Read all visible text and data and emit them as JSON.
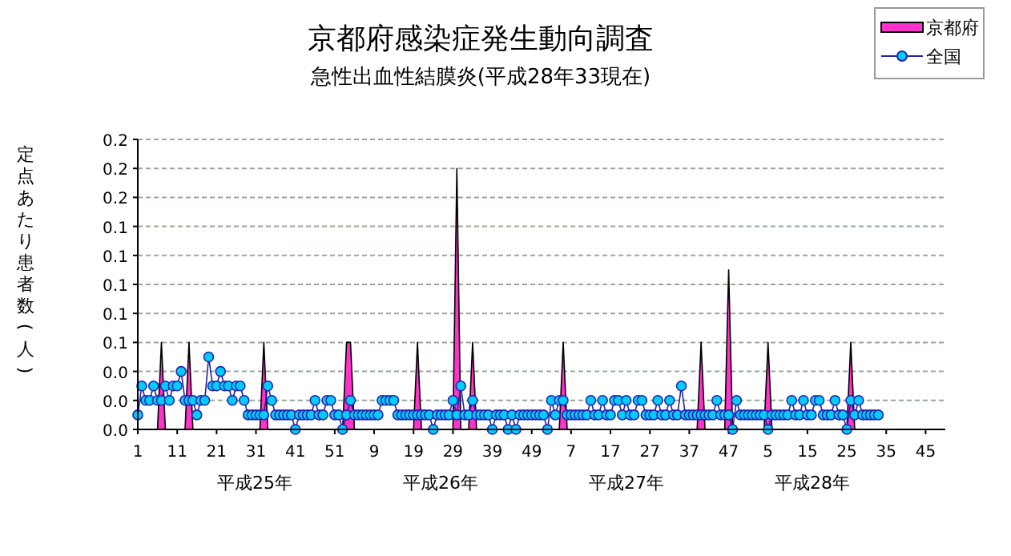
{
  "chart_data": {
    "type": "line",
    "title": "京都府感染症発生動向調査",
    "subtitle": "急性出血性結膜炎(平成28年33現在)",
    "ylabel": "定点あたり患者数(人)",
    "annotations": [
      "平成25年",
      "平成26年",
      "平成27年",
      "平成28年"
    ],
    "categories": [
      "1",
      null,
      null,
      null,
      null,
      null,
      null,
      null,
      null,
      null,
      "11",
      null,
      null,
      null,
      null,
      null,
      null,
      null,
      null,
      null,
      "21",
      null,
      null,
      null,
      null,
      null,
      null,
      null,
      null,
      null,
      "31",
      null,
      null,
      null,
      null,
      null,
      null,
      null,
      null,
      null,
      "41",
      null,
      null,
      null,
      null,
      null,
      null,
      null,
      null,
      null,
      "51",
      null,
      null,
      null,
      null,
      null,
      null,
      null,
      null,
      null,
      "9",
      null,
      null,
      null,
      null,
      null,
      null,
      null,
      null,
      null,
      "19",
      null,
      null,
      null,
      null,
      null,
      null,
      null,
      null,
      null,
      "29",
      null,
      null,
      null,
      null,
      null,
      null,
      null,
      null,
      null,
      "39",
      null,
      null,
      null,
      null,
      null,
      null,
      null,
      null,
      null,
      "49",
      null,
      null,
      null,
      null,
      null,
      null,
      null,
      null,
      null,
      "7",
      null,
      null,
      null,
      null,
      null,
      null,
      null,
      null,
      null,
      "17",
      null,
      null,
      null,
      null,
      null,
      null,
      null,
      null,
      null,
      "27",
      null,
      null,
      null,
      null,
      null,
      null,
      null,
      null,
      null,
      "37",
      null,
      null,
      null,
      null,
      null,
      null,
      null,
      null,
      null,
      "47",
      null,
      null,
      null,
      null,
      null,
      null,
      null,
      null,
      null,
      "5",
      null,
      null,
      null,
      null,
      null,
      null,
      null,
      null,
      null,
      "15",
      null,
      null,
      null,
      null,
      null,
      null,
      null,
      null,
      null,
      "25",
      null,
      null,
      null,
      null,
      null,
      null,
      null,
      null,
      null,
      "35",
      null,
      null,
      null,
      null,
      null,
      null,
      null,
      null,
      null,
      "45",
      null,
      null,
      null,
      null,
      null
    ],
    "series": [
      {
        "name": "京都府",
        "type": "area",
        "color": "#ff33cc",
        "values": [
          0,
          0,
          0,
          0,
          0,
          0,
          0.06,
          0,
          0,
          0,
          0,
          0,
          0,
          0.06,
          0,
          0,
          0,
          0,
          0,
          0,
          0,
          0,
          0,
          0,
          0,
          0,
          0,
          0,
          0,
          0,
          0,
          0,
          0.06,
          0,
          0,
          0,
          0,
          0,
          0,
          0,
          0,
          0,
          0,
          0,
          0,
          0,
          0,
          0,
          0,
          0,
          0,
          0,
          0,
          0.06,
          0.06,
          0,
          0,
          0,
          0,
          0,
          0,
          0,
          0,
          0,
          0,
          0,
          0,
          0,
          0,
          0,
          0,
          0.06,
          0,
          0,
          0,
          0,
          0,
          0,
          0,
          0,
          0,
          0.18,
          0,
          0,
          0,
          0.06,
          0,
          0,
          0,
          0,
          0,
          0,
          0,
          0,
          0,
          0,
          0,
          0,
          0,
          0,
          0,
          0,
          0,
          0,
          0,
          0,
          0,
          0,
          0.06,
          0,
          0,
          0,
          0,
          0,
          0,
          0,
          0,
          0,
          0,
          0,
          0,
          0,
          0,
          0,
          0,
          0,
          0,
          0,
          0,
          0,
          0,
          0,
          0,
          0,
          0,
          0,
          0,
          0,
          0,
          0,
          0,
          0,
          0,
          0.06,
          0,
          0,
          0,
          0,
          0,
          0,
          0.11,
          0,
          0,
          0,
          0,
          0,
          0,
          0,
          0,
          0,
          0.06,
          0,
          0,
          0,
          0,
          0,
          0,
          0,
          0,
          0,
          0,
          0,
          0,
          0,
          0,
          0,
          0,
          0,
          0,
          0,
          0,
          0.06,
          0,
          0,
          0,
          0,
          0,
          0,
          0,
          null,
          null,
          null,
          null,
          null,
          null,
          null,
          null,
          null,
          null,
          null,
          null,
          null,
          null,
          null,
          null,
          null
        ]
      },
      {
        "name": "全国",
        "color": "#00ccff",
        "marker": "circle",
        "values": [
          0.01,
          0.03,
          0.02,
          0.02,
          0.03,
          0.02,
          0.02,
          0.03,
          0.02,
          0.03,
          0.03,
          0.04,
          0.02,
          0.02,
          0.02,
          0.01,
          0.02,
          0.02,
          0.05,
          0.03,
          0.03,
          0.04,
          0.03,
          0.03,
          0.02,
          0.03,
          0.03,
          0.02,
          0.01,
          0.01,
          0.01,
          0.01,
          0.01,
          0.03,
          0.02,
          0.01,
          0.01,
          0.01,
          0.01,
          0.01,
          0,
          0.01,
          0.01,
          0.01,
          0.01,
          0.02,
          0.01,
          0.01,
          0.02,
          0.02,
          0.01,
          0.01,
          0,
          0.01,
          0.02,
          0.01,
          0.01,
          0.01,
          0.01,
          0.01,
          0.01,
          0.01,
          0.02,
          0.02,
          0.02,
          0.02,
          0.01,
          0.01,
          0.01,
          0.01,
          0.01,
          0.01,
          0.01,
          0.01,
          0.01,
          0,
          0.01,
          0.01,
          0.01,
          0.01,
          0.02,
          0.01,
          0.03,
          0.01,
          0.01,
          0.02,
          0.01,
          0.01,
          0.01,
          0.01,
          0,
          0.01,
          0.01,
          0.01,
          0,
          0.01,
          0,
          0.01,
          0.01,
          0.01,
          0.01,
          0.01,
          0.01,
          0.01,
          0,
          0.02,
          0.01,
          0.02,
          0.02,
          0.01,
          0.01,
          0.01,
          0.01,
          0.01,
          0.01,
          0.02,
          0.01,
          0.01,
          0.02,
          0.01,
          0.01,
          0.02,
          0.02,
          0.01,
          0.02,
          0.01,
          0.01,
          0.02,
          0.02,
          0.01,
          0.01,
          0.01,
          0.02,
          0.01,
          0.01,
          0.02,
          0.01,
          0.01,
          0.03,
          0.01,
          0.01,
          0.01,
          0.01,
          0.01,
          0.01,
          0.01,
          0.01,
          0.02,
          0.01,
          0.01,
          0.01,
          0,
          0.02,
          0.01,
          0.01,
          0.01,
          0.01,
          0.01,
          0.01,
          0.01,
          0,
          0.01,
          0.01,
          0.01,
          0.01,
          0.01,
          0.02,
          0.01,
          0.01,
          0.02,
          0.01,
          0.01,
          0.02,
          0.02,
          0.01,
          0.01,
          0.01,
          0.02,
          0.01,
          0.01,
          0,
          0.02,
          0.01,
          0.02,
          0.01,
          0.01,
          0.01,
          0.01,
          0.01,
          null,
          null,
          null,
          null,
          null,
          null,
          null,
          null,
          null,
          null,
          null,
          null,
          null,
          null,
          null,
          null,
          null
        ]
      }
    ],
    "ylim": [
      0,
      0.2
    ],
    "yticks": [
      {
        "value": 0,
        "label": "0.0"
      },
      {
        "value": 0.02,
        "label": "0.0"
      },
      {
        "value": 0.04,
        "label": "0.0"
      },
      {
        "value": 0.06,
        "label": "0.1"
      },
      {
        "value": 0.08,
        "label": "0.1"
      },
      {
        "value": 0.1,
        "label": "0.1"
      },
      {
        "value": 0.12,
        "label": "0.1"
      },
      {
        "value": 0.14,
        "label": "0.1"
      },
      {
        "value": 0.16,
        "label": "0.2"
      },
      {
        "value": 0.18,
        "label": "0.2"
      },
      {
        "value": 0.2,
        "label": "0.2"
      }
    ],
    "grid": "y",
    "legend": "top right"
  }
}
